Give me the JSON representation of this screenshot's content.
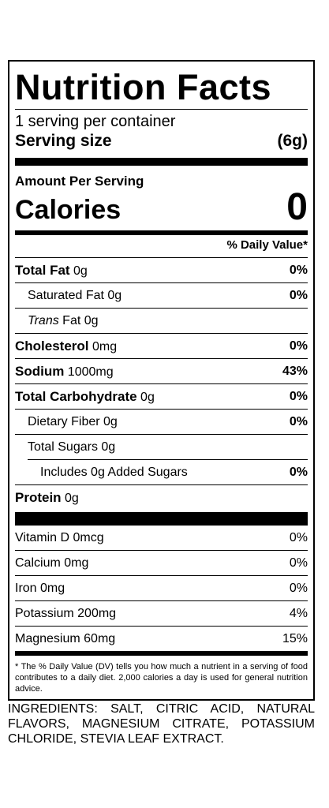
{
  "label": {
    "title": "Nutrition Facts",
    "servings_per_container": "1 serving per container",
    "serving_size_label": "Serving size",
    "serving_size_value": "(6g)",
    "amount_per_serving": "Amount Per Serving",
    "calories_label": "Calories",
    "calories_value": "0",
    "daily_value_header": "% Daily Value*",
    "nutrients": [
      {
        "name": "Total Fat",
        "amount": " 0g",
        "dv": "0%"
      },
      {
        "name": "Saturated Fat 0g",
        "amount": "",
        "dv": "0%"
      },
      {
        "name_italic": "Trans",
        "name_rest": " Fat 0g",
        "dv": ""
      },
      {
        "name": "Cholesterol",
        "amount": " 0mg",
        "dv": "0%"
      },
      {
        "name": "Sodium",
        "amount": " 1000mg",
        "dv": "43%"
      },
      {
        "name": "Total Carbohydrate",
        "amount": " 0g",
        "dv": "0%"
      },
      {
        "name": "Dietary Fiber 0g",
        "amount": "",
        "dv": "0%"
      },
      {
        "name": "Total Sugars 0g",
        "amount": "",
        "dv": ""
      },
      {
        "name": "Includes 0g Added Sugars",
        "amount": "",
        "dv": "0%"
      },
      {
        "name": "Protein",
        "amount": " 0g",
        "dv": ""
      }
    ],
    "minerals": [
      {
        "name": "Vitamin D 0mcg",
        "dv": "0%"
      },
      {
        "name": "Calcium 0mg",
        "dv": "0%"
      },
      {
        "name": "Iron 0mg",
        "dv": "0%"
      },
      {
        "name": "Potassium 200mg",
        "dv": "4%"
      },
      {
        "name": "Magnesium 60mg",
        "dv": "15%"
      }
    ],
    "footnote": "* The % Daily Value (DV) tells you how much a nutrient in a serving of food contributes to a daily diet. 2,000 calories a day is used for general nutrition advice."
  },
  "ingredients": "INGREDIENTS: SALT, CITRIC ACID, NATURAL FLAVORS, MAGNESIUM CITRATE, POTASSIUM CHLORIDE, STEVIA LEAF EXTRACT."
}
